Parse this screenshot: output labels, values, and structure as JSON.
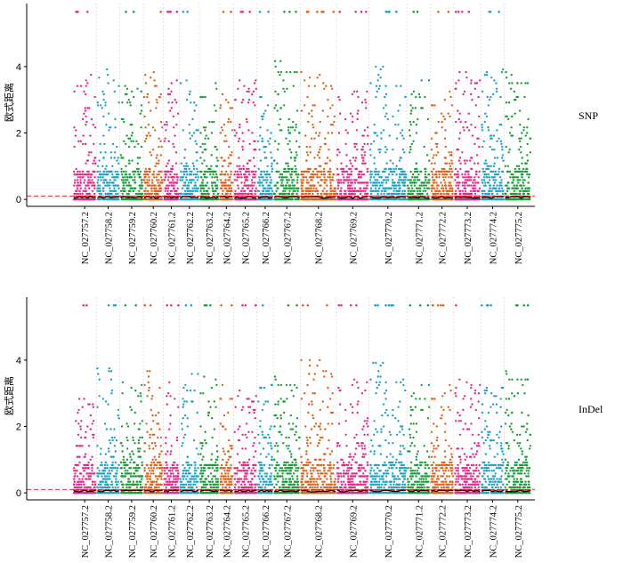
{
  "chart_data": [
    {
      "type": "scatter",
      "name": "SNP",
      "panel_label": "SNP",
      "ylabel": "欧式距离",
      "ylim": [
        -0.05,
        5.9
      ],
      "yticks": [
        0,
        2,
        4
      ],
      "threshold": 0.1,
      "chromosomes": [
        "NC_027757.2",
        "NC_027758.2",
        "NC_027759.2",
        "NC_027760.2",
        "NC_027761.2",
        "NC_027762.2",
        "NC_027763.2",
        "NC_027764.2",
        "NC_027765.2",
        "NC_027766.2",
        "NC_027767.2",
        "NC_027768.2",
        "NC_027769.2",
        "NC_027770.2",
        "NC_027771.2",
        "NC_027772.2",
        "NC_027773.2",
        "NC_027774.2",
        "NC_027775.2"
      ],
      "max_values": [
        3.8,
        4.0,
        3.6,
        4.0,
        3.6,
        3.6,
        3.6,
        3.2,
        3.6,
        3.2,
        4.3,
        3.9,
        3.3,
        4.0,
        3.6,
        3.3,
        3.9,
        3.9,
        3.9
      ],
      "saturated_value": 5.65
    },
    {
      "type": "scatter",
      "name": "InDel",
      "panel_label": "InDel",
      "ylabel": "欧式距离",
      "ylim": [
        -0.05,
        5.9
      ],
      "yticks": [
        0,
        2,
        4
      ],
      "threshold": 0.1,
      "chromosomes": [
        "NC_027757.2",
        "NC_027758.2",
        "NC_027759.2",
        "NC_027760.2",
        "NC_027761.2",
        "NC_027762.2",
        "NC_027763.2",
        "NC_027764.2",
        "NC_027765.2",
        "NC_027766.2",
        "NC_027767.2",
        "NC_027768.2",
        "NC_027769.2",
        "NC_027770.2",
        "NC_027771.2",
        "NC_027772.2",
        "NC_027773.2",
        "NC_027774.2",
        "NC_027775.2"
      ],
      "max_values": [
        3.0,
        3.8,
        3.3,
        3.7,
        3.3,
        3.6,
        3.5,
        3.3,
        3.1,
        3.3,
        3.6,
        4.1,
        3.4,
        3.9,
        3.3,
        3.3,
        3.5,
        3.2,
        3.8
      ],
      "saturated_value": 5.65
    }
  ],
  "colors": [
    "#e7298a",
    "#1fa2c6",
    "#1b9e3a",
    "#e0621a"
  ]
}
